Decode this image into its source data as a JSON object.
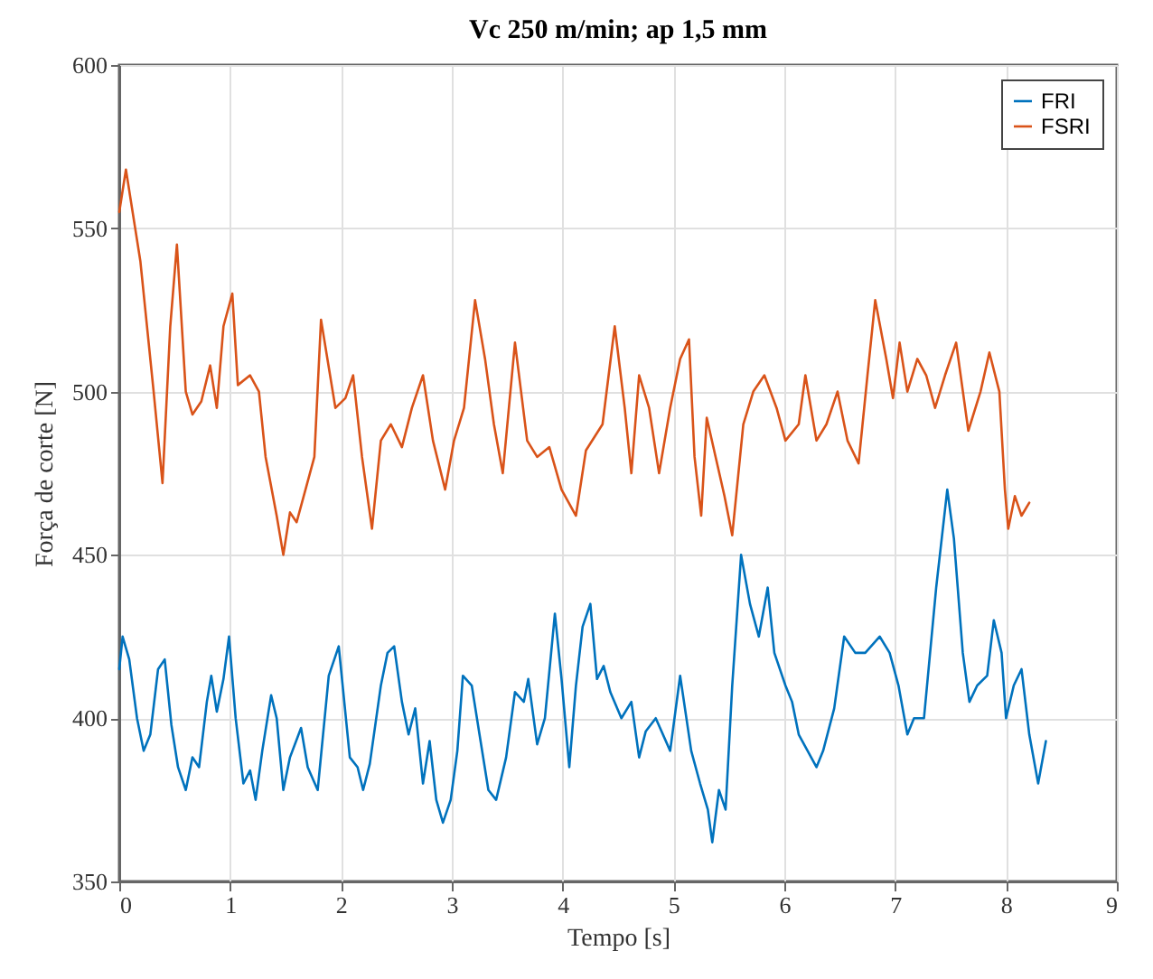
{
  "chart_data": {
    "type": "line",
    "title": "Vc 250 m/min; ap 1,5 mm",
    "xlabel": "Tempo [s]",
    "ylabel": "Força de corte [N]",
    "xlim": [
      0,
      9
    ],
    "xticks": [
      0,
      1,
      2,
      3,
      4,
      5,
      6,
      7,
      8,
      9
    ],
    "ylim": [
      350,
      600
    ],
    "yticks": [
      350,
      400,
      450,
      500,
      550,
      600
    ],
    "grid": true,
    "legend": "top right",
    "line_style": "solid",
    "series": [
      {
        "name": "FRI",
        "color": "#0072bd",
        "x": [
          0.0,
          0.03,
          0.09,
          0.16,
          0.22,
          0.28,
          0.35,
          0.41,
          0.47,
          0.53,
          0.6,
          0.66,
          0.72,
          0.79,
          0.83,
          0.88,
          0.94,
          0.99,
          1.05,
          1.12,
          1.18,
          1.23,
          1.29,
          1.37,
          1.42,
          1.48,
          1.54,
          1.64,
          1.7,
          1.79,
          1.89,
          1.98,
          2.08,
          2.15,
          2.2,
          2.26,
          2.36,
          2.42,
          2.48,
          2.55,
          2.61,
          2.67,
          2.74,
          2.8,
          2.86,
          2.92,
          2.99,
          3.05,
          3.1,
          3.18,
          3.25,
          3.33,
          3.4,
          3.49,
          3.57,
          3.65,
          3.69,
          3.77,
          3.84,
          3.93,
          3.99,
          4.06,
          4.12,
          4.18,
          4.25,
          4.31,
          4.37,
          4.43,
          4.53,
          4.62,
          4.69,
          4.75,
          4.84,
          4.97,
          5.06,
          5.16,
          5.24,
          5.31,
          5.35,
          5.41,
          5.47,
          5.53,
          5.61,
          5.69,
          5.77,
          5.85,
          5.91,
          6.01,
          6.07,
          6.13,
          6.21,
          6.29,
          6.35,
          6.45,
          6.54,
          6.64,
          6.73,
          6.86,
          6.95,
          7.03,
          7.11,
          7.17,
          7.26,
          7.37,
          7.47,
          7.53,
          7.61,
          7.67,
          7.74,
          7.83,
          7.89,
          7.96,
          8.0,
          8.07,
          8.14,
          8.21,
          8.29,
          8.36
        ],
        "values": [
          415,
          425,
          418,
          400,
          390,
          395,
          415,
          418,
          398,
          385,
          378,
          388,
          385,
          405,
          413,
          402,
          412,
          425,
          400,
          380,
          384,
          375,
          390,
          407,
          400,
          378,
          388,
          397,
          385,
          378,
          413,
          422,
          388,
          385,
          378,
          386,
          410,
          420,
          422,
          405,
          395,
          403,
          380,
          393,
          375,
          368,
          375,
          390,
          413,
          410,
          395,
          378,
          375,
          388,
          408,
          405,
          412,
          392,
          400,
          432,
          412,
          385,
          410,
          428,
          435,
          412,
          416,
          408,
          400,
          405,
          388,
          396,
          400,
          390,
          413,
          390,
          380,
          372,
          362,
          378,
          372,
          410,
          450,
          435,
          425,
          440,
          420,
          410,
          405,
          395,
          390,
          385,
          390,
          403,
          425,
          420,
          420,
          425,
          420,
          410,
          395,
          400,
          400,
          440,
          470,
          455,
          420,
          405,
          410,
          413,
          430,
          420,
          400,
          410,
          415,
          395,
          380,
          393
        ]
      },
      {
        "name": "FSRI",
        "color": "#d95319",
        "x": [
          0.0,
          0.06,
          0.19,
          0.31,
          0.39,
          0.46,
          0.52,
          0.6,
          0.66,
          0.74,
          0.82,
          0.88,
          0.94,
          1.02,
          1.07,
          1.18,
          1.26,
          1.32,
          1.42,
          1.48,
          1.54,
          1.6,
          1.68,
          1.76,
          1.82,
          1.95,
          2.04,
          2.11,
          2.19,
          2.28,
          2.36,
          2.45,
          2.55,
          2.64,
          2.74,
          2.83,
          2.94,
          3.02,
          3.11,
          3.21,
          3.3,
          3.38,
          3.46,
          3.57,
          3.68,
          3.77,
          3.88,
          3.99,
          4.12,
          4.21,
          4.36,
          4.47,
          4.56,
          4.62,
          4.69,
          4.78,
          4.87,
          4.97,
          5.06,
          5.14,
          5.19,
          5.25,
          5.3,
          5.38,
          5.46,
          5.53,
          5.63,
          5.72,
          5.82,
          5.93,
          6.01,
          6.13,
          6.19,
          6.29,
          6.38,
          6.48,
          6.57,
          6.67,
          6.75,
          6.82,
          6.92,
          6.98,
          7.04,
          7.11,
          7.2,
          7.28,
          7.36,
          7.45,
          7.55,
          7.66,
          7.77,
          7.85,
          7.94,
          7.99,
          8.02,
          8.08,
          8.14,
          8.21
        ],
        "values": [
          555,
          568,
          540,
          500,
          472,
          520,
          545,
          500,
          493,
          497,
          508,
          495,
          520,
          530,
          502,
          505,
          500,
          480,
          462,
          450,
          463,
          460,
          470,
          480,
          522,
          495,
          498,
          505,
          480,
          458,
          485,
          490,
          483,
          495,
          505,
          485,
          470,
          485,
          495,
          528,
          510,
          490,
          475,
          515,
          485,
          480,
          483,
          470,
          462,
          482,
          490,
          520,
          495,
          475,
          505,
          495,
          475,
          495,
          510,
          516,
          480,
          462,
          492,
          480,
          468,
          456,
          490,
          500,
          505,
          495,
          485,
          490,
          505,
          485,
          490,
          500,
          485,
          478,
          505,
          528,
          510,
          498,
          515,
          500,
          510,
          505,
          495,
          505,
          515,
          488,
          500,
          512,
          500,
          470,
          458,
          468,
          462,
          466
        ]
      }
    ]
  }
}
